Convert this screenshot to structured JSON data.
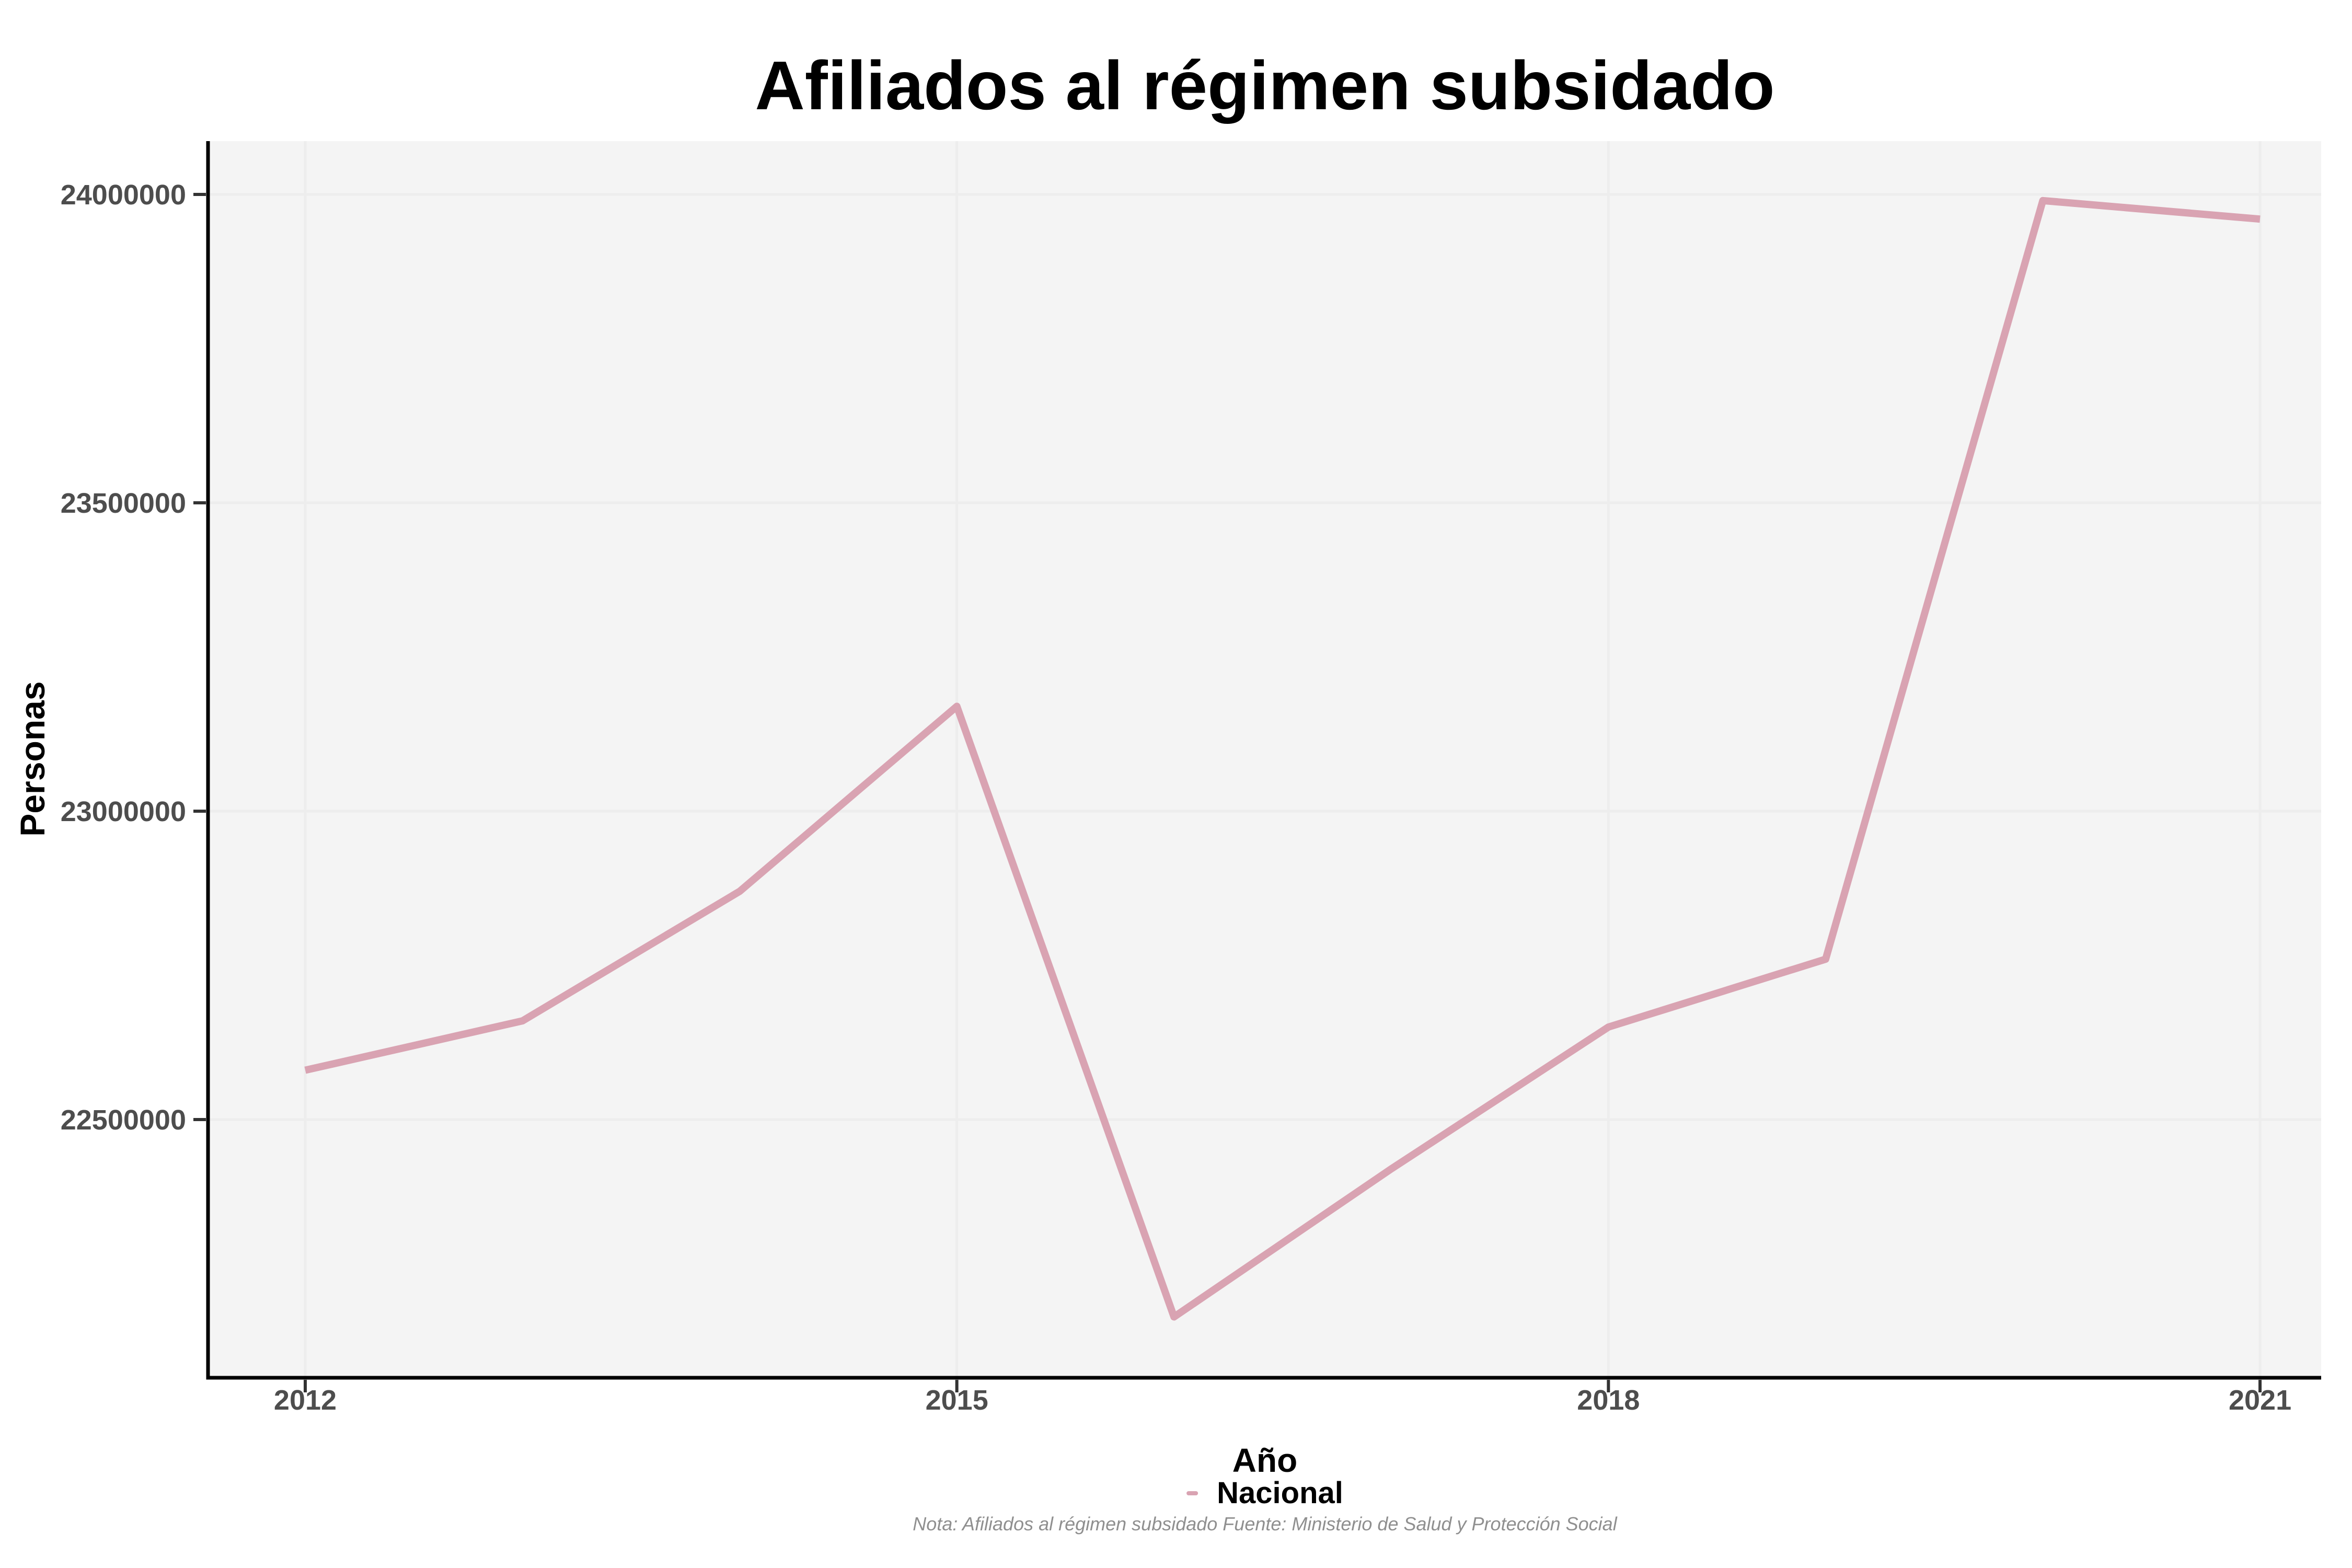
{
  "title": "Afiliados al régimen subsidado",
  "x_axis": {
    "label": "Año",
    "tick_labels": [
      "2012",
      "2015",
      "2018",
      "2021"
    ]
  },
  "y_axis": {
    "label": "Personas",
    "tick_labels": [
      "24000000",
      "23500000",
      "23000000",
      "22500000"
    ]
  },
  "legend": {
    "position": "bottom",
    "items": [
      {
        "label": "Nacional",
        "color": "#d9a3b2"
      }
    ]
  },
  "note": "Nota: Afiliados al régimen subsidado Fuente: Ministerio de Salud y Protección Social",
  "colors": {
    "series_line": "#d9a3b2",
    "panel_background": "#f4f4f4",
    "gridline": "#ededed",
    "axis_line": "#000000",
    "tick_mark": "#333333",
    "tick_label": "#4d4d4d",
    "title_text": "#000000",
    "note_text": "#8f8f8f",
    "figure_background": "#ffffff"
  },
  "chart_data": {
    "type": "line",
    "title": "Afiliados al régimen subsidado",
    "xlabel": "Año",
    "ylabel": "Personas",
    "x": [
      2012,
      2013,
      2014,
      2015,
      2016,
      2017,
      2018,
      2019,
      2020,
      2021
    ],
    "series": [
      {
        "name": "Nacional",
        "color": "#d9a3b2",
        "values": [
          22580000,
          22660000,
          22870000,
          23170000,
          22180000,
          22420000,
          22650000,
          22760000,
          23990000,
          23960000
        ]
      }
    ],
    "x_ticks": [
      2012,
      2015,
      2018,
      2021
    ],
    "y_ticks": [
      24000000,
      23500000,
      23000000,
      22500000
    ],
    "xlim": [
      2011.55,
      2021.45
    ],
    "ylim": [
      22095000,
      24088000
    ],
    "grid": "major-only",
    "legend_position": "bottom",
    "caption": "Nota: Afiliados al régimen subsidado Fuente: Ministerio de Salud y Protección Social"
  }
}
